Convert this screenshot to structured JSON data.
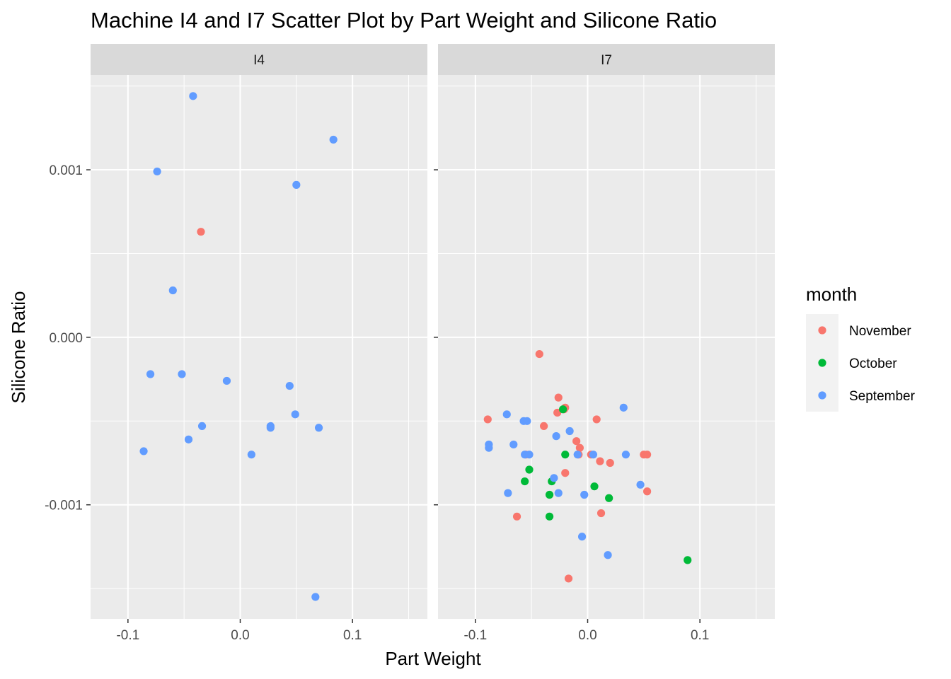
{
  "chart_data": {
    "type": "scatter",
    "title": "Machine I4 and I7 Scatter Plot by Part Weight and Silicone Ratio",
    "xlabel": "Part Weight",
    "ylabel": "Silicone Ratio",
    "xlim": [
      -0.1333,
      0.1667
    ],
    "ylim": [
      -0.001681,
      0.001566
    ],
    "x_ticks": [
      -0.1,
      0.0,
      0.1
    ],
    "x_tick_labels": [
      "-0.1",
      "0.0",
      "0.1"
    ],
    "y_ticks": [
      0.001,
      0.0,
      -0.001
    ],
    "y_tick_labels": [
      "0.001",
      "0.000",
      "-0.001"
    ],
    "grid": true,
    "legend": {
      "title": "month",
      "placement": "right",
      "entries": [
        {
          "name": "November",
          "color": "#F8766D"
        },
        {
          "name": "October",
          "color": "#00BA38"
        },
        {
          "name": "September",
          "color": "#619CFF"
        }
      ]
    },
    "facets": [
      {
        "label": "I4",
        "series": [
          {
            "name": "November",
            "points": [
              [
                -0.035,
                0.00063
              ]
            ]
          },
          {
            "name": "September",
            "points": [
              [
                -0.042,
                0.00144
              ],
              [
                0.083,
                0.00118
              ],
              [
                -0.074,
                0.00099
              ],
              [
                0.05,
                0.00091
              ],
              [
                -0.06,
                0.00028
              ],
              [
                -0.08,
                -0.00022
              ],
              [
                -0.052,
                -0.00022
              ],
              [
                -0.012,
                -0.00026
              ],
              [
                0.044,
                -0.00029
              ],
              [
                0.049,
                -0.00046
              ],
              [
                -0.034,
                -0.00053
              ],
              [
                0.027,
                -0.00053
              ],
              [
                0.027,
                -0.00054
              ],
              [
                0.07,
                -0.00054
              ],
              [
                -0.046,
                -0.00061
              ],
              [
                -0.086,
                -0.00068
              ],
              [
                0.01,
                -0.0007
              ],
              [
                0.067,
                -0.00155
              ]
            ]
          }
        ]
      },
      {
        "label": "I7",
        "series": [
          {
            "name": "November",
            "points": [
              [
                -0.043,
                -0.0001
              ],
              [
                -0.026,
                -0.00036
              ],
              [
                -0.02,
                -0.00042
              ],
              [
                -0.021,
                -0.00043
              ],
              [
                -0.027,
                -0.00045
              ],
              [
                -0.089,
                -0.00049
              ],
              [
                0.008,
                -0.00049
              ],
              [
                -0.039,
                -0.00053
              ],
              [
                -0.01,
                -0.00062
              ],
              [
                -0.007,
                -0.00066
              ],
              [
                -0.055,
                -0.0007
              ],
              [
                -0.008,
                -0.0007
              ],
              [
                0.003,
                -0.0007
              ],
              [
                0.05,
                -0.0007
              ],
              [
                0.053,
                -0.0007
              ],
              [
                0.011,
                -0.00074
              ],
              [
                0.02,
                -0.00075
              ],
              [
                -0.02,
                -0.00081
              ],
              [
                0.053,
                -0.00092
              ],
              [
                0.012,
                -0.00105
              ],
              [
                -0.063,
                -0.00107
              ],
              [
                -0.017,
                -0.00144
              ]
            ]
          },
          {
            "name": "October",
            "points": [
              [
                -0.022,
                -0.00043
              ],
              [
                -0.02,
                -0.0007
              ],
              [
                -0.052,
                -0.00079
              ],
              [
                -0.056,
                -0.00086
              ],
              [
                -0.032,
                -0.00086
              ],
              [
                0.006,
                -0.00089
              ],
              [
                -0.034,
                -0.00094
              ],
              [
                0.019,
                -0.00096
              ],
              [
                -0.034,
                -0.00107
              ],
              [
                0.089,
                -0.00133
              ]
            ]
          },
          {
            "name": "September",
            "points": [
              [
                0.032,
                -0.00042
              ],
              [
                -0.072,
                -0.00046
              ],
              [
                -0.057,
                -0.0005
              ],
              [
                -0.054,
                -0.0005
              ],
              [
                -0.016,
                -0.00056
              ],
              [
                -0.028,
                -0.00059
              ],
              [
                -0.088,
                -0.00064
              ],
              [
                -0.066,
                -0.00064
              ],
              [
                -0.088,
                -0.00066
              ],
              [
                -0.056,
                -0.0007
              ],
              [
                -0.052,
                -0.0007
              ],
              [
                -0.009,
                -0.0007
              ],
              [
                0.005,
                -0.0007
              ],
              [
                0.034,
                -0.0007
              ],
              [
                -0.03,
                -0.00084
              ],
              [
                0.047,
                -0.00088
              ],
              [
                -0.071,
                -0.00093
              ],
              [
                -0.026,
                -0.00093
              ],
              [
                -0.003,
                -0.00094
              ],
              [
                -0.005,
                -0.00119
              ],
              [
                0.018,
                -0.0013
              ]
            ]
          }
        ]
      }
    ]
  }
}
